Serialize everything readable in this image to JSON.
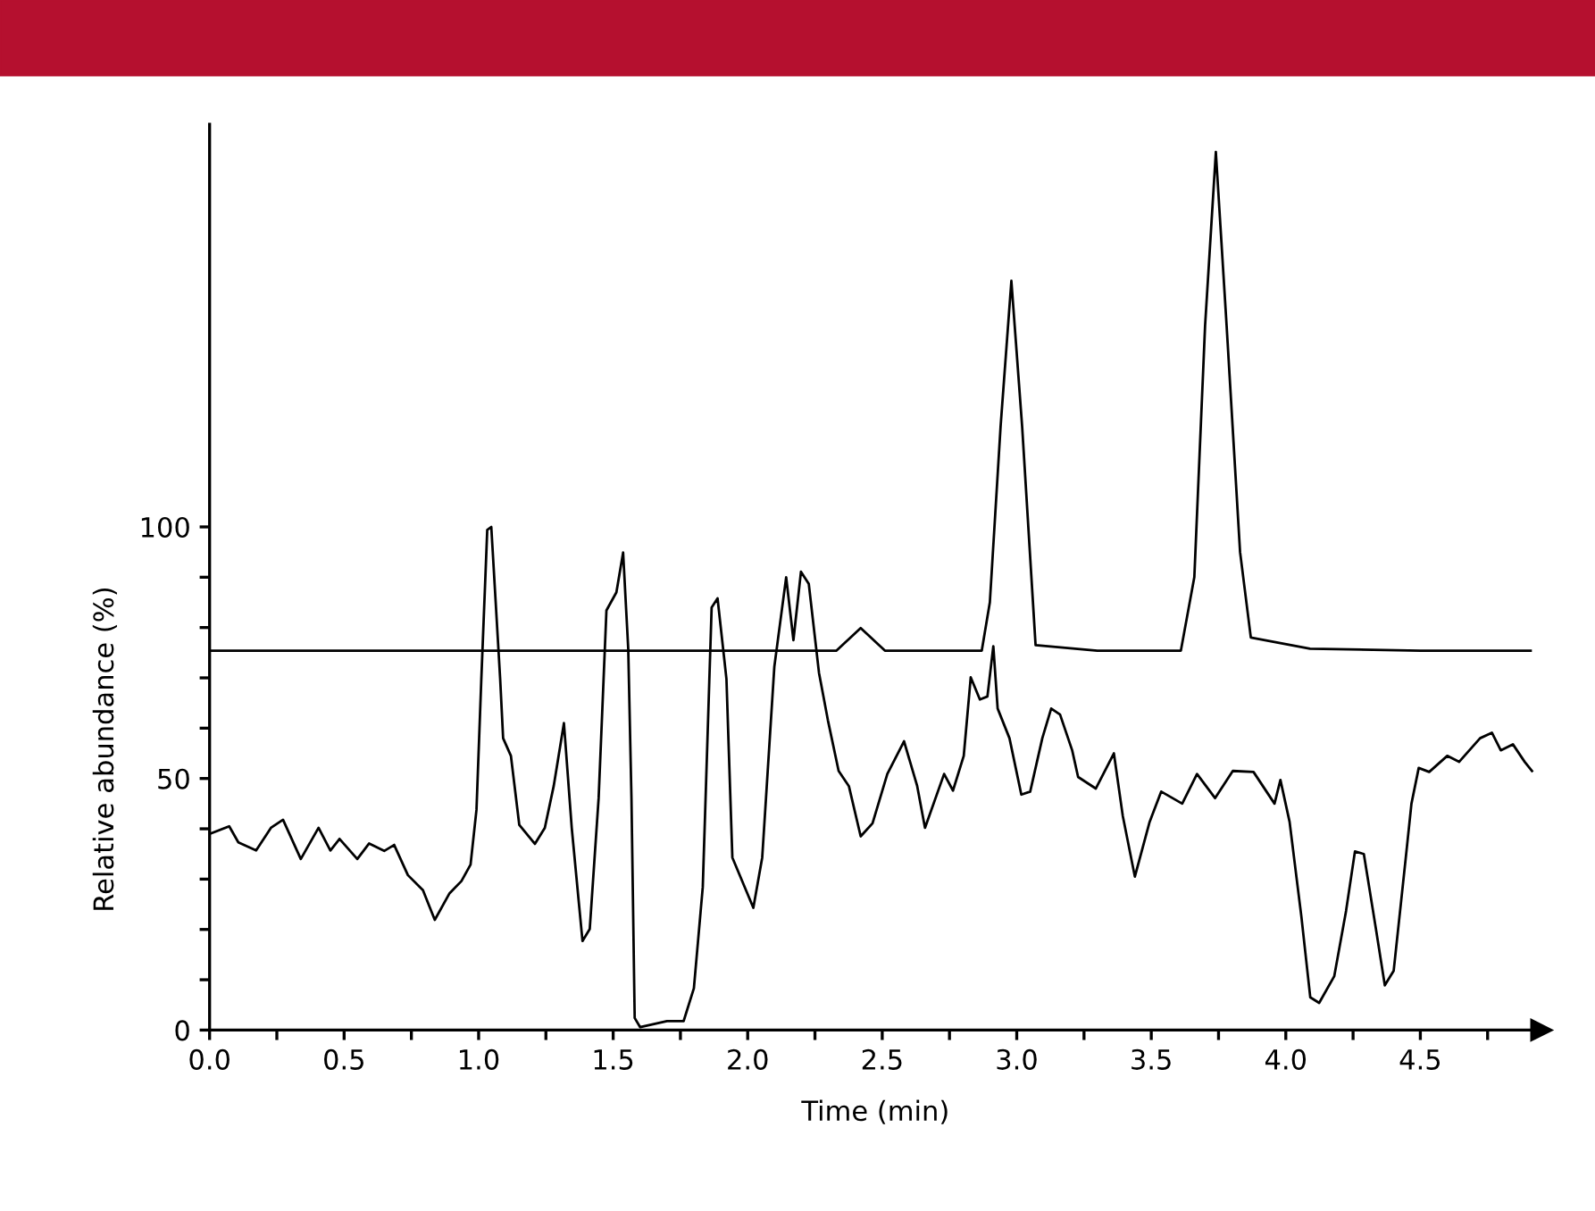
{
  "chart_data": {
    "type": "line",
    "xlabel": "Time (min)",
    "ylabel": "Relative abundance (%)",
    "xlim": [
      0,
      4.95
    ],
    "ylim": [
      0,
      180
    ],
    "xticks": [
      {
        "value": 0.0,
        "label": "0.0"
      },
      {
        "value": 0.25,
        "label": null
      },
      {
        "value": 0.5,
        "label": "0.5"
      },
      {
        "value": 0.75,
        "label": null
      },
      {
        "value": 1.0,
        "label": "1.0"
      },
      {
        "value": 1.25,
        "label": null
      },
      {
        "value": 1.5,
        "label": "1.5"
      },
      {
        "value": 1.75,
        "label": null
      },
      {
        "value": 2.0,
        "label": "2.0"
      },
      {
        "value": 2.25,
        "label": null
      },
      {
        "value": 2.5,
        "label": "2.5"
      },
      {
        "value": 2.75,
        "label": null
      },
      {
        "value": 3.0,
        "label": "3.0"
      },
      {
        "value": 3.25,
        "label": null
      },
      {
        "value": 3.5,
        "label": "3.5"
      },
      {
        "value": 3.75,
        "label": null
      },
      {
        "value": 4.0,
        "label": "4.0"
      },
      {
        "value": 4.25,
        "label": null
      },
      {
        "value": 4.5,
        "label": "4.5"
      },
      {
        "value": 4.75,
        "label": null
      }
    ],
    "yticks": [
      0,
      {
        "value": 10,
        "label": null
      },
      {
        "value": 20,
        "label": null
      },
      {
        "value": 30,
        "label": null
      },
      {
        "value": 40,
        "label": null
      },
      50,
      {
        "value": 60,
        "label": null
      },
      {
        "value": 70,
        "label": null
      },
      {
        "value": 80,
        "label": null
      },
      {
        "value": 90,
        "label": null
      },
      100
    ],
    "grid": false,
    "legend": false,
    "marker": "none",
    "line_style": "solid",
    "series": [
      {
        "color": "#000000",
        "x": [
          0,
          0.5,
          1.0,
          1.5,
          2.0,
          2.33,
          2.42,
          2.51,
          2.87,
          2.9,
          2.94,
          2.98,
          3.02,
          3.07,
          3.3,
          3.61,
          3.66,
          3.7,
          3.74,
          3.78,
          3.83,
          3.87,
          4.09,
          4.5,
          4.91
        ],
        "values": [
          75.4,
          75.4,
          75.4,
          75.4,
          75.4,
          75.4,
          79.9,
          75.4,
          75.4,
          85,
          120,
          148.9,
          120,
          76.5,
          75.4,
          75.4,
          90,
          140,
          174.5,
          140,
          95,
          78,
          75.8,
          75.4,
          75.4
        ]
      },
      {
        "color": "#000000",
        "x": [
          0,
          0.073,
          0.107,
          0.173,
          0.228,
          0.273,
          0.339,
          0.405,
          0.449,
          0.483,
          0.549,
          0.593,
          0.649,
          0.686,
          0.737,
          0.793,
          0.837,
          0.892,
          0.936,
          0.97,
          0.992,
          1.01,
          1.032,
          1.047,
          1.08,
          1.091,
          1.12,
          1.151,
          1.209,
          1.246,
          1.279,
          1.317,
          1.346,
          1.386,
          1.413,
          1.446,
          1.475,
          1.512,
          1.537,
          1.556,
          1.568,
          1.58,
          1.6,
          1.7,
          1.762,
          1.8,
          1.833,
          1.866,
          1.888,
          1.921,
          1.943,
          2.021,
          2.054,
          2.099,
          2.143,
          2.17,
          2.198,
          2.227,
          2.265,
          2.298,
          2.338,
          2.376,
          2.42,
          2.464,
          2.519,
          2.581,
          2.63,
          2.659,
          2.73,
          2.763,
          2.803,
          2.829,
          2.863,
          2.891,
          2.913,
          2.929,
          2.973,
          3.017,
          3.05,
          3.095,
          3.128,
          3.161,
          3.206,
          3.228,
          3.294,
          3.361,
          3.394,
          3.439,
          3.494,
          3.537,
          3.615,
          3.67,
          3.737,
          3.803,
          3.88,
          3.958,
          3.98,
          4.014,
          4.058,
          4.091,
          4.124,
          4.18,
          4.224,
          4.257,
          4.29,
          4.335,
          4.368,
          4.401,
          4.446,
          4.467,
          4.494,
          4.533,
          4.6,
          4.644,
          4.722,
          4.766,
          4.799,
          4.844,
          4.888,
          4.915
        ],
        "values": [
          39.0,
          40.5,
          37.3,
          35.7,
          40.2,
          41.8,
          34.0,
          40.2,
          35.7,
          38.0,
          34.0,
          37.1,
          35.6,
          36.8,
          30.8,
          27.8,
          21.9,
          27.2,
          29.6,
          32.9,
          43.8,
          69.8,
          99.4,
          100,
          69.8,
          58.0,
          54.5,
          40.8,
          37.0,
          40.2,
          48.5,
          61.0,
          40.2,
          17.7,
          20.1,
          46.1,
          83.4,
          87.0,
          94.9,
          75.8,
          46.1,
          2.4,
          0.6,
          1.8,
          1.8,
          8.3,
          28.4,
          84.0,
          85.8,
          69.8,
          34.3,
          24.3,
          34.3,
          72.2,
          90.0,
          77.5,
          91.1,
          88.7,
          71.0,
          61.6,
          51.5,
          48.5,
          38.5,
          41.1,
          50.9,
          57.4,
          48.5,
          40.2,
          50.9,
          47.6,
          54.5,
          70.1,
          65.7,
          66.3,
          76.3,
          63.9,
          58.0,
          46.8,
          47.4,
          58.0,
          63.9,
          62.7,
          55.6,
          50.3,
          48.0,
          55.0,
          42.6,
          30.5,
          41.4,
          47.4,
          45.0,
          50.9,
          46.1,
          51.5,
          51.3,
          45.0,
          49.7,
          41.4,
          22.5,
          6.5,
          5.4,
          10.7,
          23.7,
          35.5,
          35.0,
          20.1,
          8.9,
          11.8,
          34.3,
          45.0,
          52.1,
          51.3,
          54.5,
          53.3,
          58.0,
          59.1,
          55.6,
          56.8,
          53.3,
          51.5
        ]
      }
    ]
  }
}
